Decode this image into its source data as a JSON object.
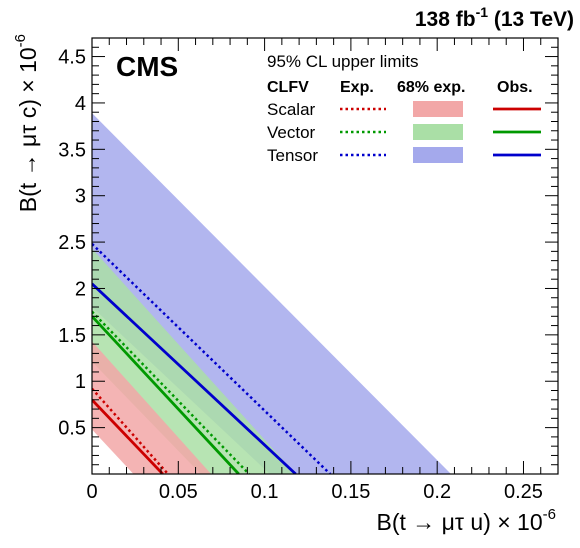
{
  "chart_data": {
    "type": "area",
    "title": "",
    "experiment": "CMS",
    "luminosity": {
      "value": "138 fb",
      "exponent": "-1",
      "energy": "(13 TeV)"
    },
    "xlabel": {
      "main": "B(t → μτ u) × 10",
      "exponent": "-6"
    },
    "ylabel": {
      "main": "B(t → μτ c) × 10",
      "exponent": "-6"
    },
    "xlim": [
      0,
      0.27
    ],
    "ylim": [
      0,
      4.7
    ],
    "xticks": [
      {
        "value": 0,
        "label": "0"
      },
      {
        "value": 0.05,
        "label": "0.05"
      },
      {
        "value": 0.1,
        "label": "0.1"
      },
      {
        "value": 0.15,
        "label": "0.15"
      },
      {
        "value": 0.2,
        "label": "0.2"
      },
      {
        "value": 0.25,
        "label": "0.25"
      }
    ],
    "yticks": [
      {
        "value": 0.5,
        "label": "0.5"
      },
      {
        "value": 1,
        "label": "1"
      },
      {
        "value": 1.5,
        "label": "1.5"
      },
      {
        "value": 2,
        "label": "2"
      },
      {
        "value": 2.5,
        "label": "2.5"
      },
      {
        "value": 3,
        "label": "3"
      },
      {
        "value": 3.5,
        "label": "3.5"
      },
      {
        "value": 4,
        "label": "4"
      },
      {
        "value": 4.5,
        "label": "4.5"
      }
    ],
    "legend": {
      "placement": "top-right",
      "header": "95% CL upper limits",
      "columns": [
        "CLFV",
        "Exp.",
        "68% exp.",
        "Obs."
      ]
    },
    "series": [
      {
        "name": "Scalar",
        "color": "#cc0000",
        "band_color": "#f2a7a7",
        "observed": {
          "x_intercept": 0.041,
          "y_intercept": 0.8
        },
        "expected": {
          "x_intercept": 0.044,
          "y_intercept": 0.92
        },
        "band_low": {
          "x_intercept": 0.024,
          "y_intercept": 0.48
        },
        "band_high": {
          "x_intercept": 0.069,
          "y_intercept": 1.43
        }
      },
      {
        "name": "Vector",
        "color": "#009900",
        "band_color": "#aadfa6",
        "observed": {
          "x_intercept": 0.085,
          "y_intercept": 1.7
        },
        "expected": {
          "x_intercept": 0.091,
          "y_intercept": 1.75
        },
        "band_low": {
          "x_intercept": 0.063,
          "y_intercept": 1.21
        },
        "band_high": {
          "x_intercept": 0.118,
          "y_intercept": 2.43
        }
      },
      {
        "name": "Tensor",
        "color": "#0000cc",
        "band_color": "#a4a9ec",
        "observed": {
          "x_intercept": 0.118,
          "y_intercept": 2.05
        },
        "expected": {
          "x_intercept": 0.138,
          "y_intercept": 2.48
        },
        "band_low": {
          "x_intercept": 0.103,
          "y_intercept": 1.8
        },
        "band_high": {
          "x_intercept": 0.208,
          "y_intercept": 3.89
        }
      }
    ]
  }
}
